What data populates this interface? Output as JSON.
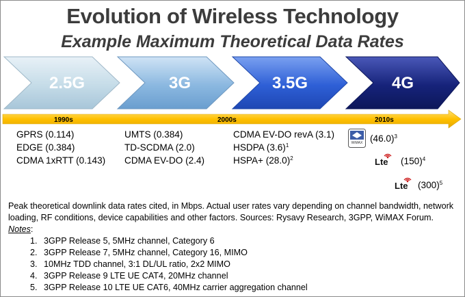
{
  "title": "Evolution of Wireless Technology",
  "subtitle": "Example Maximum Theoretical Data Rates",
  "generations": [
    "2.5G",
    "3G",
    "3.5G",
    "4G"
  ],
  "eras": [
    "1990s",
    "2000s",
    "2010s"
  ],
  "columns": {
    "g25": [
      "GPRS (0.114)",
      "EDGE (0.384)",
      "CDMA 1xRTT (0.143)"
    ],
    "g3": [
      "UMTS (0.384)",
      "TD-SCDMA (2.0)",
      "CDMA EV-DO (2.4)"
    ],
    "g35": [
      {
        "text": "CDMA EV-DO revA (3.1)",
        "sup": ""
      },
      {
        "text": "HSDPA (3.6)",
        "sup": "1"
      },
      {
        "text": "HSPA+ (28.0)",
        "sup": "2"
      }
    ]
  },
  "g4": [
    {
      "logo": "WiMAX",
      "text": "(46.0)",
      "sup": "3"
    },
    {
      "logo": "Lte",
      "text": "(150)",
      "sup": "4"
    },
    {
      "logo": "Lte",
      "text": "(300)",
      "sup": "5"
    }
  ],
  "footer": {
    "text": "Peak theoretical downlink data rates cited, in Mbps.  Actual user rates vary depending on channel bandwidth, network loading, RF conditions, device capabilities and other factors. Sources: Rysavy Research, 3GPP, WiMAX Forum.",
    "notes_label": "Notes",
    "notes": [
      "3GPP Release 5, 5MHz channel, Category 6",
      "3GPP Release 7, 5MHz channel, Category 16, MIMO",
      "10MHz TDD channel, 3:1 DL/UL ratio, 2x2 MIMO",
      "3GPP Release  9 LTE UE CAT4, 20MHz channel",
      "3GPP Release 10 LTE UE CAT6, 40MHz carrier aggregation channel"
    ]
  },
  "colors": {
    "timeline": "#ffc000",
    "g25": "#c5dce8",
    "g3": "#8bb8e0",
    "g35": "#2e5fd6",
    "g4": "#16237a"
  }
}
